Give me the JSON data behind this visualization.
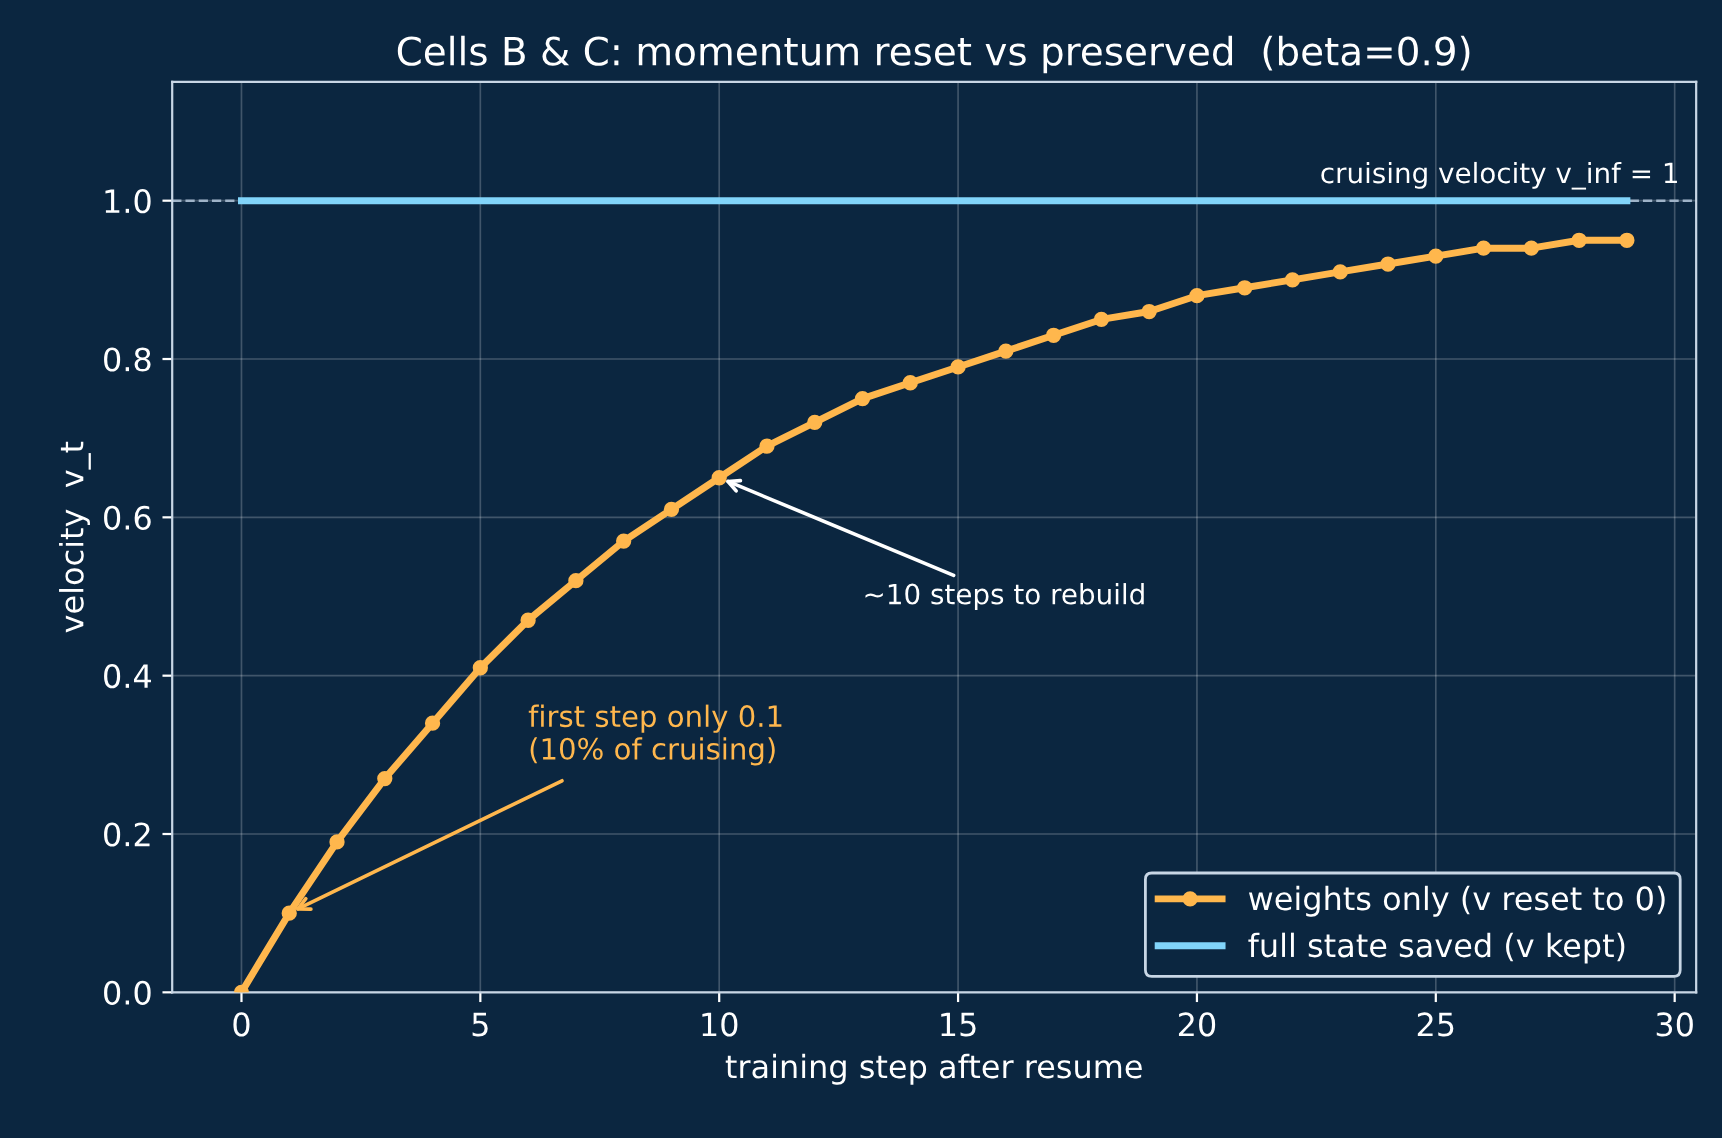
{
  "chart_data": {
    "type": "line",
    "title": "Cells B & C: momentum reset vs preserved  (beta=0.9)",
    "xlabel": "training step after resume",
    "ylabel": "velocity  v_t",
    "x": [
      0,
      1,
      2,
      3,
      4,
      5,
      6,
      7,
      8,
      9,
      10,
      11,
      12,
      13,
      14,
      15,
      16,
      17,
      18,
      19,
      20,
      21,
      22,
      23,
      24,
      25,
      26,
      27,
      28,
      29
    ],
    "series": [
      {
        "name": "weights only (v reset to 0)",
        "color": "#ffb74d",
        "marker": "circle",
        "values": [
          0,
          0.1,
          0.19,
          0.27,
          0.34,
          0.41,
          0.47,
          0.52,
          0.57,
          0.61,
          0.65,
          0.69,
          0.72,
          0.75,
          0.77,
          0.79,
          0.81,
          0.83,
          0.85,
          0.86,
          0.88,
          0.89,
          0.9,
          0.91,
          0.92,
          0.93,
          0.94,
          0.94,
          0.95,
          0.95
        ]
      },
      {
        "name": "full state saved (v kept)",
        "color": "#81d4fa",
        "marker": "none",
        "x": [
          0,
          29
        ],
        "values": [
          1,
          1
        ]
      }
    ],
    "xlim": [
      -1.45,
      30.45
    ],
    "ylim": [
      0,
      1.15
    ],
    "xticks": [
      0,
      5,
      10,
      15,
      20,
      25,
      30
    ],
    "yticks": [
      {
        "value": 0,
        "label": "0.0"
      },
      0.2,
      0.4,
      0.6,
      0.8,
      {
        "value": 1,
        "label": "1.0"
      }
    ],
    "ref_lines": [
      {
        "axis": "y",
        "value": 1,
        "label": "cruising velocity v_inf = 1",
        "color": "#9fb3c8",
        "line_style": "dashed"
      }
    ],
    "annotations": [
      {
        "text": "~10 steps to rebuild",
        "x": 10,
        "y": 0.65
      },
      {
        "text": "first step only 0.1\n(10% of cruising)",
        "x": 1,
        "y": 0.1
      }
    ],
    "grid": true,
    "legend": "bottom right"
  }
}
